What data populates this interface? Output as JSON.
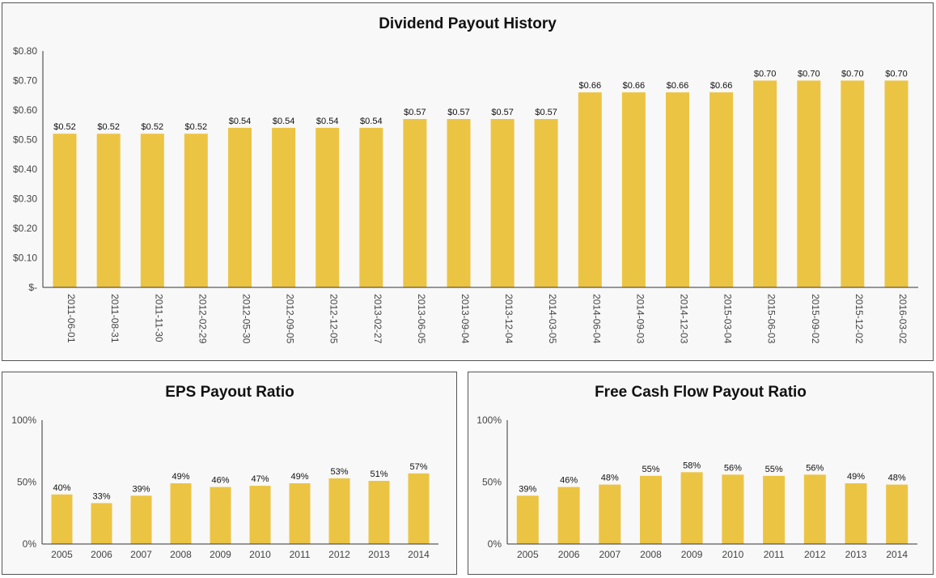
{
  "colors": {
    "bar": "#ECC444",
    "panel_bg": "#f8f8f8",
    "border": "#555555",
    "axis": "#333333"
  },
  "chart_data": [
    {
      "id": "dividend",
      "type": "bar",
      "title": "Dividend Payout History",
      "categories": [
        "2011-06-01",
        "2011-08-31",
        "2011-11-30",
        "2012-02-29",
        "2012-05-30",
        "2012-09-05",
        "2012-12-05",
        "2013-02-27",
        "2013-06-05",
        "2013-09-04",
        "2013-12-04",
        "2014-03-05",
        "2014-06-04",
        "2014-09-03",
        "2014-12-03",
        "2015-03-04",
        "2015-06-03",
        "2015-09-02",
        "2015-12-02",
        "2016-03-02"
      ],
      "values": [
        0.52,
        0.52,
        0.52,
        0.52,
        0.54,
        0.54,
        0.54,
        0.54,
        0.57,
        0.57,
        0.57,
        0.57,
        0.66,
        0.66,
        0.66,
        0.66,
        0.7,
        0.7,
        0.7,
        0.7
      ],
      "data_labels": [
        "$0.52",
        "$0.52",
        "$0.52",
        "$0.52",
        "$0.54",
        "$0.54",
        "$0.54",
        "$0.54",
        "$0.57",
        "$0.57",
        "$0.57",
        "$0.57",
        "$0.66",
        "$0.66",
        "$0.66",
        "$0.66",
        "$0.70",
        "$0.70",
        "$0.70",
        "$0.70"
      ],
      "ylim": [
        0,
        0.8
      ],
      "yticks": [
        0,
        0.1,
        0.2,
        0.3,
        0.4,
        0.5,
        0.6,
        0.7,
        0.8
      ],
      "ytick_labels": [
        "$-",
        "$0.10",
        "$0.20",
        "$0.30",
        "$0.40",
        "$0.50",
        "$0.60",
        "$0.70",
        "$0.80"
      ],
      "grid": false
    },
    {
      "id": "eps",
      "type": "bar",
      "title": "EPS Payout Ratio",
      "categories": [
        "2005",
        "2006",
        "2007",
        "2008",
        "2009",
        "2010",
        "2011",
        "2012",
        "2013",
        "2014"
      ],
      "values": [
        40,
        33,
        39,
        49,
        46,
        47,
        49,
        53,
        51,
        57
      ],
      "data_labels": [
        "40%",
        "33%",
        "39%",
        "49%",
        "46%",
        "47%",
        "49%",
        "53%",
        "51%",
        "57%"
      ],
      "ylim": [
        0,
        100
      ],
      "yticks": [
        0,
        50,
        100
      ],
      "ytick_labels": [
        "0%",
        "50%",
        "100%"
      ],
      "grid": false
    },
    {
      "id": "fcf",
      "type": "bar",
      "title": "Free Cash Flow Payout Ratio",
      "categories": [
        "2005",
        "2006",
        "2007",
        "2008",
        "2009",
        "2010",
        "2011",
        "2012",
        "2013",
        "2014"
      ],
      "values": [
        39,
        46,
        48,
        55,
        58,
        56,
        55,
        56,
        49,
        48
      ],
      "data_labels": [
        "39%",
        "46%",
        "48%",
        "55%",
        "58%",
        "56%",
        "55%",
        "56%",
        "49%",
        "48%"
      ],
      "ylim": [
        0,
        100
      ],
      "yticks": [
        0,
        50,
        100
      ],
      "ytick_labels": [
        "0%",
        "50%",
        "100%"
      ],
      "grid": false
    }
  ]
}
